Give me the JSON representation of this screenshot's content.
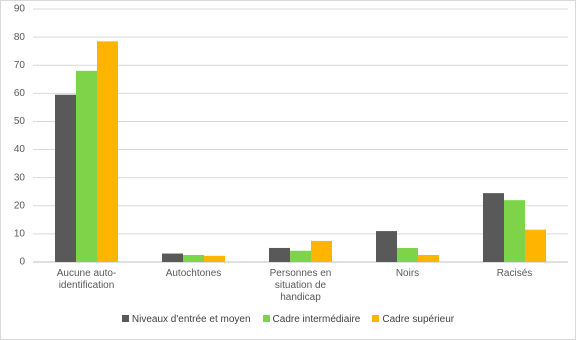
{
  "chart_data": {
    "type": "bar",
    "categories": [
      "Aucune auto-identification",
      "Autochtones",
      "Personnes en situation de handicap",
      "Noirs",
      "Racisés"
    ],
    "series": [
      {
        "name": "Niveaux d'entrée et moyen",
        "color": "#595959",
        "values": [
          59.5,
          3,
          5,
          11,
          24.5
        ]
      },
      {
        "name": "Cadre intermédiaire",
        "color": "#7ed348",
        "values": [
          68,
          2.5,
          4,
          5,
          22
        ]
      },
      {
        "name": "Cadre supérieur",
        "color": "#ffb400",
        "values": [
          78.5,
          2.2,
          7.5,
          2.5,
          11.5
        ]
      }
    ],
    "ylim": [
      0,
      90
    ],
    "yticks": [
      0,
      10,
      20,
      30,
      40,
      50,
      60,
      70,
      80,
      90
    ],
    "grid": true,
    "legend": "bottom"
  }
}
